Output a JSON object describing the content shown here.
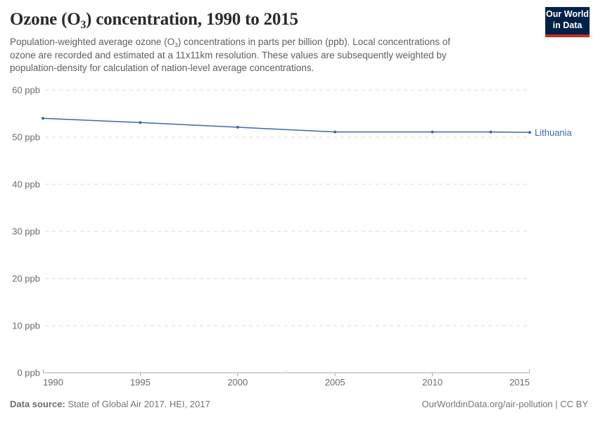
{
  "header": {
    "title": {
      "pre": "Ozone (O",
      "sub": "3",
      "post": ") concentration, 1990 to 2015"
    },
    "subtitle": {
      "l1pre": "Population-weighted average ozone (O",
      "l1sub": "3",
      "l1post": ") concentrations in parts per billion (ppb). Local concentrations of",
      "l2": "ozone are recorded and estimated at a 11x11km resolution. These values are subsequently weighted by",
      "l3": "population-density for calculation of nation-level average concentrations."
    },
    "logo": {
      "line1": "Our World",
      "line2": "in Data"
    }
  },
  "chart_data": {
    "type": "line",
    "title": "Ozone (O3) concentration, 1990 to 2015",
    "x": [
      1990,
      1995,
      2000,
      2005,
      2010,
      2013,
      2015
    ],
    "series": [
      {
        "name": "Lithuania",
        "color": "#3d6aa6",
        "values": [
          54.0,
          53.1,
          52.1,
          51.1,
          51.1,
          51.1,
          51.0
        ]
      }
    ],
    "xlim": [
      1990,
      2015
    ],
    "ylim": [
      0,
      60
    ],
    "xticks": [
      1990,
      1995,
      2000,
      2005,
      2010,
      2015
    ],
    "yticks": [
      0,
      10,
      20,
      30,
      40,
      50,
      60
    ],
    "ytick_suffix": " ppb",
    "grid": "horizontal-dashed",
    "legend_position": "end-of-line-label"
  },
  "footer": {
    "source_label": "Data source:",
    "source_text": " State of Global Air 2017. HEI, 2017",
    "link_text": "OurWorldinData.org/air-pollution | CC BY"
  },
  "colors": {
    "series_blue": "#3d6aa6",
    "logo_navy": "#002147",
    "logo_red": "#c2312b",
    "grid_gray": "#dcdcdc",
    "axis_gray": "#a7a7a7",
    "tick_label_gray": "#6b6b6b"
  }
}
